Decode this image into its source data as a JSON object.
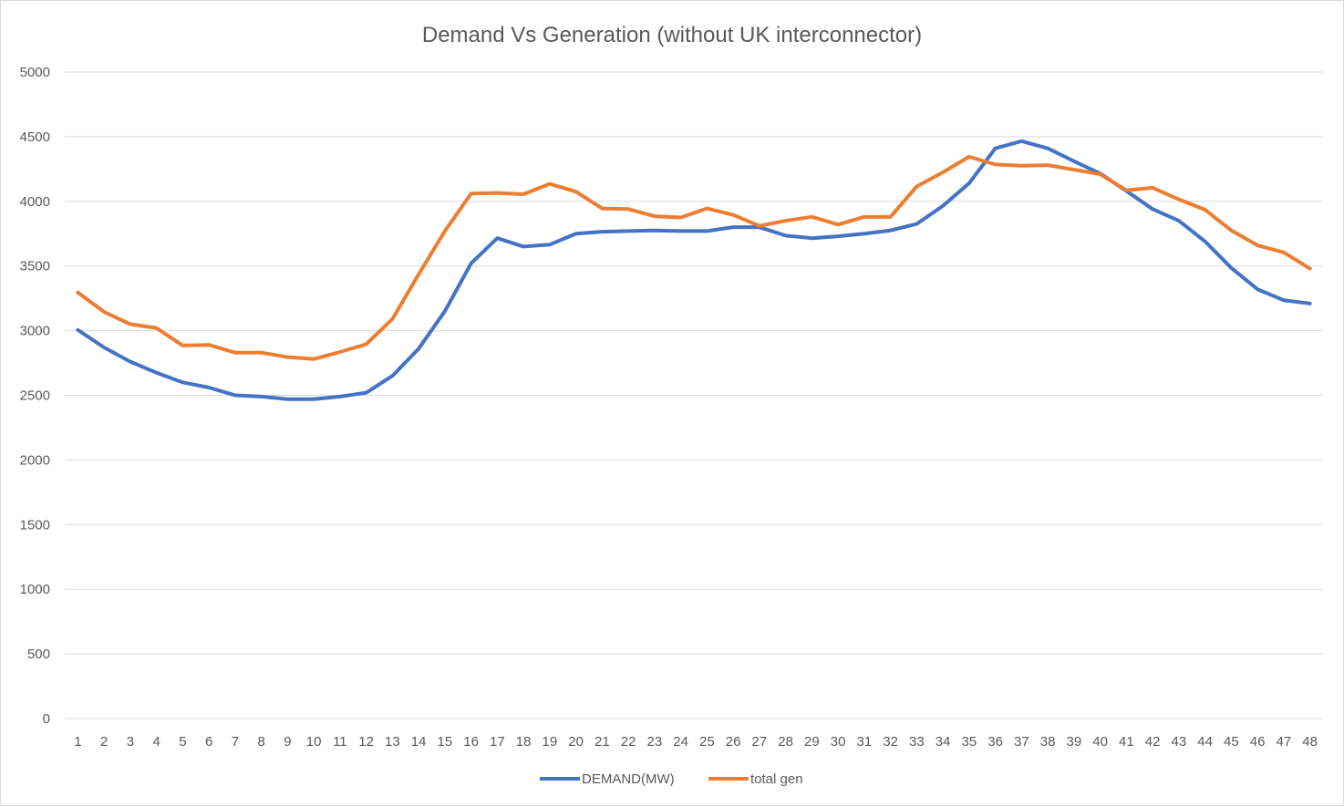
{
  "chart_data": {
    "type": "line",
    "title": "Demand Vs Generation (without UK interconnector)",
    "xlabel": "",
    "ylabel": "",
    "ylim": [
      0,
      5000
    ],
    "yticks": [
      0,
      500,
      1000,
      1500,
      2000,
      2500,
      3000,
      3500,
      4000,
      4500,
      5000
    ],
    "grid": true,
    "legend_position": "bottom",
    "categories": [
      "1",
      "2",
      "3",
      "4",
      "5",
      "6",
      "7",
      "8",
      "9",
      "10",
      "11",
      "12",
      "13",
      "14",
      "15",
      "16",
      "17",
      "18",
      "19",
      "20",
      "21",
      "22",
      "23",
      "24",
      "25",
      "26",
      "27",
      "28",
      "29",
      "30",
      "31",
      "32",
      "33",
      "34",
      "35",
      "36",
      "37",
      "38",
      "39",
      "40",
      "41",
      "42",
      "43",
      "44",
      "45",
      "46",
      "47",
      "48"
    ],
    "series": [
      {
        "name": "DEMAND(MW)",
        "color": "#4472c4",
        "values": [
          3005,
          2870,
          2760,
          2675,
          2600,
          2560,
          2500,
          2490,
          2470,
          2470,
          2490,
          2520,
          2650,
          2860,
          3150,
          3520,
          3715,
          3650,
          3665,
          3750,
          3765,
          3770,
          3775,
          3770,
          3770,
          3800,
          3800,
          3735,
          3715,
          3730,
          3750,
          3775,
          3825,
          3965,
          4140,
          4410,
          4465,
          4410,
          4310,
          4215,
          4080,
          3940,
          3850,
          3690,
          3485,
          3320,
          3235,
          3210
        ]
      },
      {
        "name": "total gen",
        "color": "#ed7d31",
        "values": [
          3295,
          3145,
          3050,
          3020,
          2885,
          2890,
          2830,
          2830,
          2795,
          2780,
          2835,
          2895,
          3090,
          3435,
          3770,
          4060,
          4065,
          4055,
          4135,
          4075,
          3945,
          3940,
          3885,
          3875,
          3945,
          3895,
          3810,
          3850,
          3880,
          3820,
          3880,
          3880,
          4115,
          4225,
          4345,
          4285,
          4275,
          4280,
          4245,
          4210,
          4085,
          4105,
          4015,
          3935,
          3775,
          3660,
          3605,
          3480
        ]
      }
    ]
  }
}
